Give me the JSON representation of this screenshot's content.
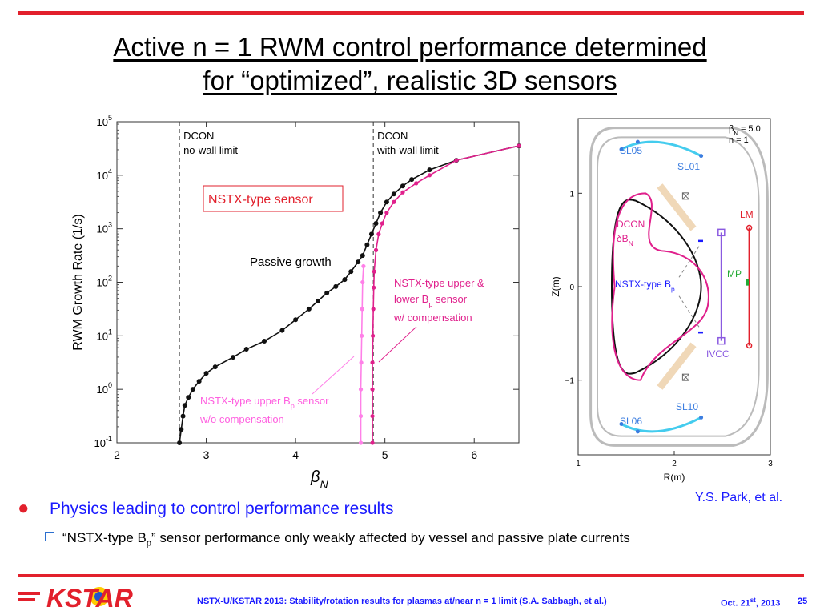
{
  "slide": {
    "title_line1": "Active n = 1 RWM control performance determined",
    "title_line2": "for “optimized”, realistic 3D sensors",
    "bullet": "Physics leading to control performance results",
    "sub_bullet_pre": "“NSTX-type B",
    "sub_bullet_sub": "p",
    "sub_bullet_post": "” sensor performance only weakly affected by vessel and passive plate currents",
    "credit": "Y.S. Park, et al.",
    "footer": "NSTX-U/KSTAR 2013: Stability/rotation results for plasmas at/near  n = 1 limit (S.A. Sabbagh, et al.)",
    "footer_date_pre": "Oct. 21",
    "footer_date_sup": "st",
    "footer_date_post": ", 2013",
    "page_number": "25",
    "logo_text": "KSTAR",
    "colors": {
      "accent_red": "#e2202c",
      "text_blue": "#1a1aff",
      "magenta": "#e0208c",
      "light_magenta": "#ff80e8"
    }
  },
  "chart_data": [
    {
      "type": "line",
      "xlabel": "β",
      "xlabel_sub": "N",
      "ylabel": "RWM Growth Rate (1/s)",
      "xlim": [
        2,
        6.5
      ],
      "ylim_log10": [
        -1,
        5
      ],
      "yscale": "log",
      "xticks": [
        "2",
        "3",
        "4",
        "5",
        "6"
      ],
      "xtick_values": [
        2,
        3,
        4,
        5,
        6
      ],
      "yticks": [
        {
          "base": "10",
          "exp": "5",
          "value": 5
        },
        {
          "base": "10",
          "exp": "4",
          "value": 4
        },
        {
          "base": "10",
          "exp": "3",
          "value": 3
        },
        {
          "base": "10",
          "exp": "2",
          "value": 2
        },
        {
          "base": "10",
          "exp": "1",
          "value": 1
        },
        {
          "base": "10",
          "exp": "0",
          "value": 0
        },
        {
          "base": "10",
          "exp": "-1",
          "value": -1
        }
      ],
      "limits": [
        {
          "x": 2.7,
          "label1": "DCON",
          "label2": "no-wall limit"
        },
        {
          "x": 4.87,
          "label1": "DCON",
          "label2": "with-wall limit"
        }
      ],
      "annotations": {
        "box": "NSTX-type sensor",
        "passive": "Passive growth",
        "upper_lower_1": "NSTX-type upper &",
        "upper_lower_2_pre": "lower B",
        "upper_lower_2_sub": "p",
        "upper_lower_2_post": " sensor",
        "upper_lower_3": "w/ compensation",
        "upper_only_1_pre": "NSTX-type upper B",
        "upper_only_1_sub": "p",
        "upper_only_1_post": " sensor",
        "upper_only_2": "w/o compensation"
      },
      "series": [
        {
          "color": "#111111",
          "points": [
            [
              2.7,
              -1
            ],
            [
              2.72,
              -0.75
            ],
            [
              2.74,
              -0.5
            ],
            [
              2.76,
              -0.3
            ],
            [
              2.8,
              -0.15
            ],
            [
              2.85,
              0
            ],
            [
              2.92,
              0.15
            ],
            [
              3.0,
              0.3
            ],
            [
              3.1,
              0.42
            ],
            [
              3.3,
              0.6
            ],
            [
              3.45,
              0.75
            ],
            [
              3.65,
              0.9
            ],
            [
              3.85,
              1.1
            ],
            [
              4.0,
              1.3
            ],
            [
              4.15,
              1.5
            ],
            [
              4.25,
              1.65
            ],
            [
              4.35,
              1.8
            ],
            [
              4.45,
              1.92
            ],
            [
              4.55,
              2.05
            ],
            [
              4.62,
              2.2
            ],
            [
              4.7,
              2.38
            ],
            [
              4.75,
              2.5
            ],
            [
              4.8,
              2.7
            ],
            [
              4.85,
              2.9
            ],
            [
              4.9,
              3.1
            ],
            [
              4.95,
              3.3
            ],
            [
              5.02,
              3.5
            ],
            [
              5.1,
              3.65
            ],
            [
              5.2,
              3.8
            ],
            [
              5.3,
              3.92
            ],
            [
              5.5,
              4.1
            ],
            [
              5.8,
              4.28
            ],
            [
              6.5,
              4.55
            ]
          ]
        },
        {
          "color": "#e0208c",
          "points": [
            [
              4.86,
              -1
            ],
            [
              4.86,
              -0.5
            ],
            [
              4.86,
              0
            ],
            [
              4.86,
              0.5
            ],
            [
              4.865,
              1
            ],
            [
              4.87,
              1.5
            ],
            [
              4.875,
              1.9
            ],
            [
              4.88,
              2.2
            ],
            [
              4.9,
              2.6
            ],
            [
              4.93,
              2.9
            ],
            [
              4.97,
              3.1
            ],
            [
              5.02,
              3.3
            ],
            [
              5.1,
              3.5
            ],
            [
              5.2,
              3.68
            ],
            [
              5.35,
              3.85
            ],
            [
              5.5,
              4.0
            ],
            [
              5.8,
              4.28
            ],
            [
              6.5,
              4.55
            ]
          ]
        },
        {
          "color": "#ff80e8",
          "points": [
            [
              4.73,
              -1
            ],
            [
              4.73,
              -0.5
            ],
            [
              4.73,
              0
            ],
            [
              4.735,
              0.5
            ],
            [
              4.74,
              1
            ],
            [
              4.745,
              1.5
            ],
            [
              4.75,
              2
            ],
            [
              4.76,
              2.3
            ]
          ]
        }
      ]
    },
    {
      "type": "line",
      "xlabel": "R(m)",
      "ylabel": "Z(m)",
      "xlim": [
        1,
        3
      ],
      "ylim": [
        -1.8,
        1.8
      ],
      "xticks": [
        "1",
        "2",
        "3"
      ],
      "yticks": [
        "1",
        "0",
        "−1"
      ],
      "legend_line1": "β",
      "legend_line1_sub": "N",
      "legend_line1_post": " = 5.0",
      "legend_line2": "n = 1",
      "labels": {
        "sl05": "SL05",
        "sl01": "SL01",
        "sl06": "SL06",
        "sl10": "SL10",
        "lm": "LM",
        "mp": "MP",
        "ivcc": "IVCC",
        "dcon": "DCON",
        "dcon2_pre": "δB",
        "dcon2_sub": "N",
        "nstx_pre": "NSTX-type B",
        "nstx_sub": "p"
      }
    }
  ]
}
